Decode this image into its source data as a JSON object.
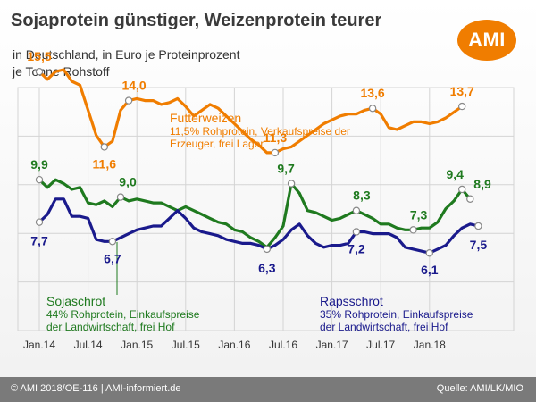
{
  "header": {
    "title": "Sojaprotein günstiger, Weizenprotein teurer",
    "subtitle_line1": "in Deutschland, in Euro je Proteinprozent",
    "subtitle_line2": "je Tonne Rohstoff",
    "logo_text": "AMI"
  },
  "footer": {
    "left": "© AMI 2018/OE-116 | AMI-informiert.de",
    "right": "Quelle: AMI/LK/MIO"
  },
  "series_labels": {
    "weizen_name": "Futterweizen",
    "weizen_desc1": "11,5% Rohprotein, Verkaufspreise der",
    "weizen_desc2": "Erzeuger, frei Lager",
    "soja_name": "Sojaschrot",
    "soja_desc1": "44% Rohprotein, Einkaufspreise",
    "soja_desc2": "der Landwirtschaft, frei Hof",
    "raps_name": "Rapsschrot",
    "raps_desc1": "35% Rohprotein, Einkaufspreise",
    "raps_desc2": "der Landwirtschaft, frei Hof"
  },
  "colors": {
    "weizen": "#f07d00",
    "soja": "#1f7a1f",
    "raps": "#1a1a8c",
    "grid": "#d4d4d4",
    "axis_text": "#333333"
  },
  "chart_data": {
    "type": "line",
    "x_tick_labels": [
      "Jan.14",
      "Jul.14",
      "Jan.15",
      "Jul.15",
      "Jan.16",
      "Jul.16",
      "Jan.17",
      "Jul.17",
      "Jan.18"
    ],
    "x_range": [
      0,
      58
    ],
    "y_range": [
      4.5,
      18
    ],
    "grid": true,
    "series": [
      {
        "name": "Futterweizen",
        "color": "#f07d00",
        "values": [
          15.5,
          15.1,
          15.5,
          15.6,
          15.0,
          14.8,
          13.5,
          12.2,
          11.6,
          11.9,
          13.5,
          14.0,
          14.1,
          14.0,
          14.0,
          13.8,
          13.9,
          14.1,
          13.7,
          13.2,
          13.5,
          13.8,
          13.6,
          13.2,
          12.8,
          12.4,
          12.0,
          11.7,
          11.3,
          11.3,
          11.5,
          11.6,
          11.9,
          12.2,
          12.5,
          12.8,
          13.0,
          13.2,
          13.3,
          13.3,
          13.5,
          13.6,
          13.3,
          12.6,
          12.5,
          12.7,
          12.9,
          12.9,
          12.8,
          12.9,
          13.1,
          13.4,
          13.7
        ],
        "markers": [
          {
            "i": 0,
            "label": "15,5"
          },
          {
            "i": 8,
            "label": "11,6"
          },
          {
            "i": 11,
            "label": "14,0"
          },
          {
            "i": 29,
            "label": "11,3"
          },
          {
            "i": 41,
            "label": "13,6"
          },
          {
            "i": 52,
            "label": "13,7"
          }
        ]
      },
      {
        "name": "Sojaschrot",
        "color": "#1f7a1f",
        "values": [
          9.9,
          9.5,
          9.9,
          9.7,
          9.4,
          9.5,
          8.7,
          8.6,
          8.8,
          8.5,
          9.0,
          8.8,
          8.9,
          8.8,
          8.7,
          8.7,
          8.5,
          8.3,
          8.5,
          8.3,
          8.1,
          7.9,
          7.7,
          7.6,
          7.3,
          7.2,
          6.9,
          6.7,
          6.4,
          6.9,
          7.5,
          9.7,
          9.2,
          8.3,
          8.2,
          8.0,
          7.8,
          7.9,
          8.1,
          8.3,
          8.1,
          7.9,
          7.6,
          7.6,
          7.4,
          7.3,
          7.3,
          7.4,
          7.4,
          7.7,
          8.4,
          8.8,
          9.4,
          8.9
        ],
        "markers": [
          {
            "i": 0,
            "label": "9,9"
          },
          {
            "i": 10,
            "label": "9,0"
          },
          {
            "i": 31,
            "label": "9,7"
          },
          {
            "i": 39,
            "label": "8,3"
          },
          {
            "i": 46,
            "label": "7,3"
          },
          {
            "i": 52,
            "label": "9,4"
          },
          {
            "i": 53,
            "label": "8,9"
          }
        ]
      },
      {
        "name": "Rapsschrot",
        "color": "#1a1a8c",
        "values": [
          7.7,
          8.1,
          8.9,
          8.9,
          8.0,
          8.0,
          7.9,
          6.8,
          6.7,
          6.7,
          6.9,
          7.1,
          7.3,
          7.4,
          7.5,
          7.5,
          7.9,
          8.3,
          7.9,
          7.4,
          7.2,
          7.1,
          7.0,
          6.8,
          6.7,
          6.6,
          6.6,
          6.5,
          6.3,
          6.5,
          6.8,
          7.3,
          7.6,
          7.0,
          6.6,
          6.4,
          6.5,
          6.5,
          6.6,
          7.2,
          7.2,
          7.1,
          7.1,
          7.1,
          6.9,
          6.4,
          6.3,
          6.2,
          6.1,
          6.3,
          6.5,
          7.0,
          7.4,
          7.6,
          7.5
        ],
        "markers": [
          {
            "i": 0,
            "label": "7,7"
          },
          {
            "i": 9,
            "label": "6,7"
          },
          {
            "i": 28,
            "label": "6,3"
          },
          {
            "i": 39,
            "label": "7,2"
          },
          {
            "i": 48,
            "label": "6,1"
          },
          {
            "i": 54,
            "label": "7,5"
          }
        ]
      }
    ]
  }
}
